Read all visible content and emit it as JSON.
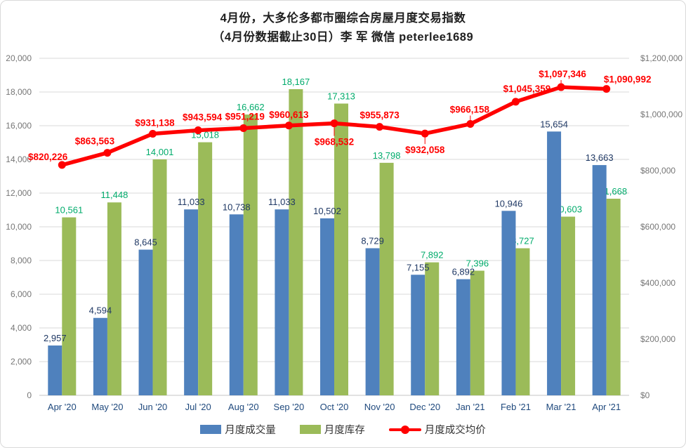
{
  "colors": {
    "volume_bar": "#4F81BD",
    "inventory_bar": "#9BBB59",
    "price_line": "#FF0000",
    "volume_label": "#1F3864",
    "inventory_label": "#00AB6B",
    "price_label": "#FF0000",
    "axis_text": "#767676",
    "category_text": "#1F497D",
    "gridline": "#D9D9D9",
    "baseline": "#C6C6C6"
  },
  "chart_data": {
    "type": "bar",
    "title_line1": "4月份，大多伦多都市圈综合房屋月度交易指数",
    "title_line2": "（4月份数据截止30日）李 军 微信 peterlee1689",
    "categories": [
      "Apr '20",
      "May '20",
      "Jun '20",
      "Jul '20",
      "Aug '20",
      "Sep '20",
      "Oct '20",
      "Nov '20",
      "Dec '20",
      "Jan '21",
      "Feb '21",
      "Mar '21",
      "Apr '21"
    ],
    "series": [
      {
        "name": "月度成交量",
        "type": "bar",
        "axis": "left",
        "values": [
          2957,
          4594,
          8645,
          11033,
          10738,
          11033,
          10502,
          8729,
          7155,
          6892,
          10946,
          15654,
          13663
        ]
      },
      {
        "name": "月度库存",
        "type": "bar",
        "axis": "left",
        "values": [
          10561,
          11448,
          14001,
          15018,
          16662,
          18167,
          17313,
          13798,
          7892,
          7396,
          8727,
          10603,
          11668
        ]
      },
      {
        "name": "月度成交均价",
        "type": "line",
        "axis": "right",
        "values": [
          820226,
          863563,
          931138,
          943594,
          951219,
          960613,
          968532,
          955873,
          932058,
          966158,
          1045359,
          1097346,
          1090992
        ]
      }
    ],
    "left_axis": {
      "min": 0,
      "max": 20000,
      "step": 2000
    },
    "right_axis": {
      "min": 0,
      "max": 1200000,
      "step": 200000,
      "prefix": "$"
    },
    "grid": true,
    "legend_position": "bottom"
  }
}
